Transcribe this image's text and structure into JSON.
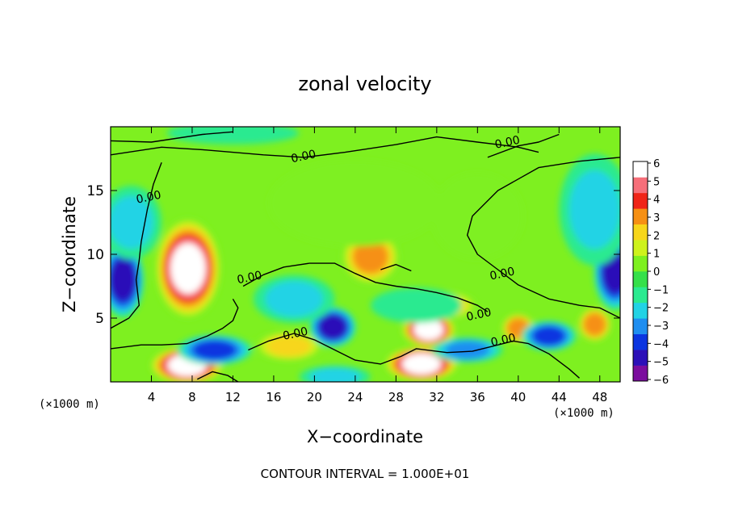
{
  "chart_data": {
    "type": "heatmap",
    "title": "zonal velocity",
    "xlabel": "X−coordinate",
    "ylabel": "Z−coordinate",
    "x_scale_label": "(×1000 m)",
    "z_scale_label": "(×1000 m)",
    "footer": "CONTOUR INTERVAL = 1.000E+01",
    "xlim": [
      0,
      50
    ],
    "zlim": [
      0,
      20
    ],
    "x_ticks": [
      4,
      8,
      12,
      16,
      20,
      24,
      28,
      32,
      36,
      40,
      44,
      48
    ],
    "z_ticks": [
      5,
      10,
      15
    ],
    "colorbar": {
      "min": -6,
      "max": 6,
      "labels": [
        "6",
        "5",
        "4",
        "3",
        "2",
        "1",
        "0",
        "−1",
        "−2",
        "−3",
        "−4",
        "−5",
        "−6"
      ],
      "colors": [
        "#7b0d9e",
        "#2c10b8",
        "#0b35e0",
        "#1f8ef0",
        "#22d3e5",
        "#2bea90",
        "#35e04a",
        "#7ef020",
        "#cef21c",
        "#f7d61b",
        "#f69014",
        "#f02418",
        "#f66f7a",
        "#ffffff"
      ]
    },
    "contour_labels": [
      {
        "text": "0.00",
        "x": 19.0,
        "z": 17.4
      },
      {
        "text": "0.00",
        "x": 39.0,
        "z": 18.5
      },
      {
        "text": "0.00",
        "x": 3.8,
        "z": 14.2
      },
      {
        "text": "0.00",
        "x": 13.7,
        "z": 7.9
      },
      {
        "text": "0.00",
        "x": 18.2,
        "z": 3.5
      },
      {
        "text": "0.00",
        "x": 38.5,
        "z": 8.2
      },
      {
        "text": "0.00",
        "x": 36.2,
        "z": 5.0
      },
      {
        "text": "0.00",
        "x": 38.6,
        "z": 3.0
      }
    ],
    "features": [
      {
        "value": 7,
        "x": 7.6,
        "z": 8.9,
        "rx": 2.8,
        "rz": 3.6
      },
      {
        "value": 7,
        "x": 7.5,
        "z": 1.3,
        "rx": 3.2,
        "rz": 1.1
      },
      {
        "value": 7,
        "x": 30.5,
        "z": 1.4,
        "rx": 3.2,
        "rz": 1.0
      },
      {
        "value": 7,
        "x": 31.2,
        "z": 4.1,
        "rx": 2.2,
        "rz": 1.0
      },
      {
        "value": 4,
        "x": 25.5,
        "z": 9.8,
        "rx": 2.4,
        "rz": 1.8
      },
      {
        "value": 4,
        "x": 40.0,
        "z": 4.2,
        "rx": 1.2,
        "rz": 0.8
      },
      {
        "value": 4,
        "x": 47.5,
        "z": 4.5,
        "rx": 1.2,
        "rz": 1.0
      },
      {
        "value": 3,
        "x": 17.5,
        "z": 2.8,
        "rx": 3.0,
        "rz": 0.8
      },
      {
        "value": 3,
        "x": 33.0,
        "z": 6.0,
        "rx": 2.5,
        "rz": 0.7
      },
      {
        "value": -5,
        "x": 1.2,
        "z": 8.0,
        "rx": 1.6,
        "rz": 2.6
      },
      {
        "value": -5,
        "x": 49.5,
        "z": 8.6,
        "rx": 1.6,
        "rz": 2.6
      },
      {
        "value": -5,
        "x": 21.8,
        "z": 4.3,
        "rx": 1.8,
        "rz": 1.2
      },
      {
        "value": -4,
        "x": 10.2,
        "z": 2.5,
        "rx": 3.2,
        "rz": 0.8
      },
      {
        "value": -4,
        "x": 43.0,
        "z": 3.6,
        "rx": 2.2,
        "rz": 0.8
      },
      {
        "value": -3,
        "x": 35.0,
        "z": 2.5,
        "rx": 3.0,
        "rz": 0.6
      },
      {
        "value": -2,
        "x": 47.5,
        "z": 13.5,
        "rx": 3.0,
        "rz": 4.0
      },
      {
        "value": -2,
        "x": 2.0,
        "z": 12.5,
        "rx": 2.5,
        "rz": 2.5
      },
      {
        "value": -2,
        "x": 18.0,
        "z": 6.5,
        "rx": 3.5,
        "rz": 1.5
      },
      {
        "value": -2,
        "x": 22.0,
        "z": 0.4,
        "rx": 3.0,
        "rz": 0.5
      },
      {
        "value": -1,
        "x": 30.0,
        "z": 6.0,
        "rx": 4.0,
        "rz": 1.0
      },
      {
        "value": -1,
        "x": 12.0,
        "z": 19.5,
        "rx": 6.0,
        "rz": 0.5
      },
      {
        "value": 1,
        "x": 24.0,
        "z": 14.0,
        "rx": 8.0,
        "rz": 3.0
      },
      {
        "value": 1,
        "x": 36.0,
        "z": 13.0,
        "rx": 4.0,
        "rz": 3.0
      }
    ],
    "contours_zero": [
      [
        [
          0,
          17.8
        ],
        [
          5,
          18.4
        ],
        [
          9,
          18.2
        ],
        [
          15,
          17.8
        ],
        [
          19,
          17.6
        ],
        [
          23,
          18.0
        ],
        [
          28,
          18.6
        ],
        [
          32,
          19.2
        ],
        [
          36,
          18.8
        ],
        [
          38,
          18.6
        ],
        [
          40,
          18.4
        ],
        [
          42,
          18.0
        ]
      ],
      [
        [
          0,
          18.9
        ],
        [
          4,
          18.8
        ],
        [
          9,
          19.4
        ],
        [
          12,
          19.6
        ]
      ],
      [
        [
          37,
          17.6
        ],
        [
          40,
          18.5
        ],
        [
          42,
          18.8
        ],
        [
          44,
          19.4
        ]
      ],
      [
        [
          50,
          17.6
        ],
        [
          46,
          17.3
        ],
        [
          42,
          16.8
        ],
        [
          38,
          15.0
        ],
        [
          35.5,
          13.0
        ],
        [
          35.0,
          11.5
        ],
        [
          36.0,
          10.0
        ],
        [
          38.0,
          8.8
        ],
        [
          40.0,
          7.6
        ],
        [
          43.0,
          6.5
        ],
        [
          46.0,
          6.0
        ],
        [
          48.0,
          5.8
        ],
        [
          50,
          5.0
        ]
      ],
      [
        [
          5.0,
          17.2
        ],
        [
          4.2,
          15.5
        ],
        [
          3.6,
          13.5
        ],
        [
          3.0,
          11.0
        ],
        [
          2.8,
          9.5
        ],
        [
          2.5,
          8.0
        ],
        [
          2.8,
          6.0
        ],
        [
          1.8,
          5.0
        ],
        [
          0,
          4.2
        ]
      ],
      [
        [
          13.0,
          7.5
        ],
        [
          15.0,
          8.4
        ],
        [
          17.0,
          9.0
        ],
        [
          19.5,
          9.3
        ],
        [
          22.0,
          9.3
        ],
        [
          24.0,
          8.5
        ],
        [
          26.0,
          7.8
        ],
        [
          28.0,
          7.5
        ],
        [
          30.0,
          7.3
        ],
        [
          32.0,
          7.0
        ],
        [
          34.0,
          6.6
        ],
        [
          36.0,
          6.0
        ],
        [
          37.0,
          5.5
        ]
      ],
      [
        [
          12.0,
          6.5
        ],
        [
          12.5,
          5.8
        ],
        [
          12.0,
          4.8
        ],
        [
          11.0,
          4.2
        ],
        [
          9.5,
          3.6
        ],
        [
          7.5,
          3.0
        ],
        [
          5.0,
          2.9
        ],
        [
          3.0,
          2.9
        ],
        [
          0,
          2.6
        ]
      ],
      [
        [
          13.5,
          2.5
        ],
        [
          15.5,
          3.2
        ],
        [
          18.0,
          3.8
        ],
        [
          20.0,
          3.3
        ],
        [
          22.0,
          2.5
        ],
        [
          24.0,
          1.7
        ],
        [
          26.5,
          1.4
        ],
        [
          28.5,
          2.0
        ],
        [
          30.0,
          2.6
        ],
        [
          33.0,
          2.3
        ],
        [
          35.5,
          2.4
        ],
        [
          37.5,
          2.8
        ],
        [
          39.5,
          3.2
        ],
        [
          41.0,
          3.0
        ],
        [
          43.0,
          2.2
        ],
        [
          45.0,
          1.0
        ],
        [
          46.0,
          0.3
        ]
      ],
      [
        [
          8.5,
          0.2
        ],
        [
          10.0,
          0.8
        ],
        [
          11.5,
          0.5
        ],
        [
          12.5,
          0
        ]
      ],
      [
        [
          26.5,
          8.8
        ],
        [
          28.0,
          9.2
        ],
        [
          29.5,
          8.7
        ]
      ]
    ]
  }
}
